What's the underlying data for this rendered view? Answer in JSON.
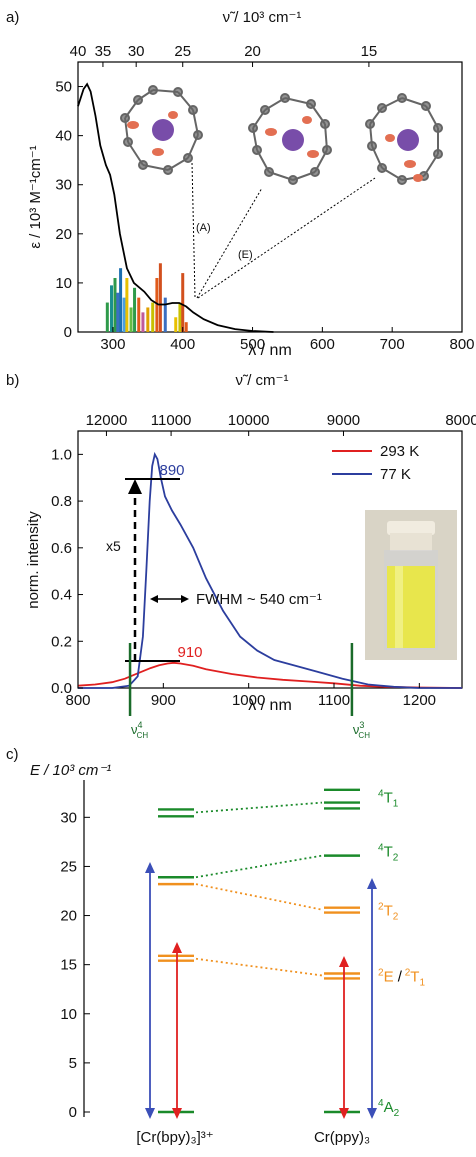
{
  "panels": [
    {
      "letter": "a)",
      "chart_data": {
        "type": "line",
        "title": "",
        "xlabel": "λ / nm",
        "ylabel": "ε / 10³ M⁻¹cm⁻¹",
        "top_xlabel": "ν̃ / 10³ cm⁻¹",
        "xlim": [
          250,
          800
        ],
        "ylim": [
          0,
          55
        ],
        "xticks": [
          300,
          400,
          500,
          600,
          700,
          800
        ],
        "yticks": [
          0,
          10,
          20,
          30,
          40,
          50
        ],
        "top_ticks": [
          40,
          35,
          30,
          25,
          20,
          15
        ],
        "series": [
          {
            "color": "#000000",
            "x": [
              250,
              258,
              263,
              268,
              275,
              282,
              290,
              296,
              302,
              310,
              320,
              330,
              345,
              355,
              365,
              375,
              385,
              395,
              405,
              415,
              430,
              450,
              475,
              500,
              530
            ],
            "y": [
              46,
              49.5,
              50.5,
              49,
              44,
              38,
              34,
              32,
              28,
              20,
              13,
              10,
              8.2,
              6.5,
              5.6,
              5.6,
              5.9,
              5.9,
              5.2,
              4.0,
              2.6,
              1.4,
              0.6,
              0.2,
              0
            ]
          }
        ],
        "transitions": [
          {
            "x": 292,
            "y": 6,
            "color": "#2e9a4a"
          },
          {
            "x": 298,
            "y": 9.5,
            "color": "#1a8f8f"
          },
          {
            "x": 303,
            "y": 11,
            "color": "#2e9a4a"
          },
          {
            "x": 307,
            "y": 8,
            "color": "#3b6fc2"
          },
          {
            "x": 311,
            "y": 13,
            "color": "#1a6fb0"
          },
          {
            "x": 316,
            "y": 7,
            "color": "#4aa0e0"
          },
          {
            "x": 320,
            "y": 11,
            "color": "#e8c000"
          },
          {
            "x": 326,
            "y": 5,
            "color": "#66bb44"
          },
          {
            "x": 331,
            "y": 9,
            "color": "#2e9a4a"
          },
          {
            "x": 337,
            "y": 7,
            "color": "#e05a1a"
          },
          {
            "x": 343,
            "y": 4,
            "color": "#c05a9a"
          },
          {
            "x": 350,
            "y": 5,
            "color": "#e0a000"
          },
          {
            "x": 357,
            "y": 6,
            "color": "#c8c000"
          },
          {
            "x": 363,
            "y": 11,
            "color": "#e05a1a"
          },
          {
            "x": 368,
            "y": 14,
            "color": "#d2501e"
          },
          {
            "x": 375,
            "y": 7,
            "color": "#3b6fc2"
          },
          {
            "x": 390,
            "y": 3,
            "color": "#e8c000"
          },
          {
            "x": 396,
            "y": 6,
            "color": "#c8c000"
          },
          {
            "x": 400,
            "y": 12,
            "color": "#d2501e"
          },
          {
            "x": 405,
            "y": 2,
            "color": "#e05a1a"
          }
        ],
        "annotations": [
          "(A)",
          "(E)"
        ]
      }
    },
    {
      "letter": "b)",
      "chart_data": {
        "type": "line",
        "title": "",
        "xlabel": "λ / nm",
        "ylabel": "norm. intensity",
        "top_xlabel": "ν̃ / cm⁻¹",
        "xlim": [
          800,
          1250
        ],
        "ylim": [
          0,
          1.1
        ],
        "xticks": [
          800,
          900,
          1000,
          1100,
          1200
        ],
        "yticks": [
          "0.0",
          "0.2",
          "0.4",
          "0.6",
          "0.8",
          "1.0"
        ],
        "top_ticks": [
          12000,
          11000,
          10000,
          9000,
          8000
        ],
        "series": [
          {
            "name": "293 K",
            "color": "#e02020",
            "x": [
              800,
              820,
              840,
              855,
              865,
              875,
              885,
              895,
              905,
              912,
              920,
              935,
              950,
              980,
              1010,
              1040,
              1070,
              1100,
              1130,
              1160,
              1200,
              1250
            ],
            "y": [
              0.01,
              0.015,
              0.025,
              0.04,
              0.055,
              0.07,
              0.085,
              0.097,
              0.105,
              0.108,
              0.105,
              0.095,
              0.08,
              0.06,
              0.045,
              0.035,
              0.028,
              0.02,
              0.01,
              0.005,
              0.002,
              0
            ]
          },
          {
            "name": "77 K",
            "color": "#2c3e9e",
            "x": [
              800,
              840,
              860,
              870,
              876,
              880,
              884,
              887,
              890,
              893,
              897,
              902,
              910,
              920,
              935,
              950,
              970,
              990,
              1010,
              1030,
              1050,
              1080,
              1110,
              1140,
              1170,
              1200,
              1250
            ],
            "y": [
              0,
              0,
              0.01,
              0.05,
              0.22,
              0.5,
              0.8,
              0.95,
              1.0,
              0.98,
              0.9,
              0.82,
              0.76,
              0.7,
              0.6,
              0.47,
              0.33,
              0.22,
              0.16,
              0.12,
              0.1,
              0.07,
              0.04,
              0.015,
              0.005,
              0,
              0
            ]
          }
        ],
        "peak_labels": [
          {
            "text": "890",
            "x": 890,
            "y": 1.0,
            "color": "#2c3e9e"
          },
          {
            "text": "910",
            "x": 910,
            "y": 0.11,
            "color": "#e02020"
          }
        ],
        "scale_label": "x5",
        "fwhm_label": "FWHM ~ 540 cm⁻¹",
        "vibronic_marks": [
          {
            "x": 861,
            "main": "ν",
            "sup": "4",
            "sub": "CH",
            "color": "#1a6b2a"
          },
          {
            "x": 1121,
            "main": "ν",
            "sup": "3",
            "sub": "CH",
            "color": "#1a6b2a"
          }
        ]
      }
    },
    {
      "letter": "c)",
      "chart_data": {
        "type": "diagram",
        "title": "",
        "ylabel": "E / 10³ cm⁻¹",
        "ylim": [
          0,
          33
        ],
        "yticks": [
          0,
          5,
          10,
          15,
          20,
          25,
          30
        ],
        "columns": [
          "[Cr(bpy)₃]³⁺",
          "Cr(ppy)₃"
        ],
        "levels": {
          "bpy": [
            {
              "y": 0,
              "color": "#1a8a2a"
            },
            {
              "y": 15.4,
              "color": "#f0901e"
            },
            {
              "y": 15.9,
              "color": "#f0901e"
            },
            {
              "y": 23.2,
              "color": "#f0901e"
            },
            {
              "y": 23.9,
              "color": "#1a8a2a"
            },
            {
              "y": 30.1,
              "color": "#1a8a2a"
            },
            {
              "y": 30.8,
              "color": "#1a8a2a"
            }
          ],
          "ppy": [
            {
              "y": 0,
              "color": "#1a8a2a"
            },
            {
              "y": 13.6,
              "color": "#f0901e"
            },
            {
              "y": 14.1,
              "color": "#f0901e"
            },
            {
              "y": 20.3,
              "color": "#f0901e"
            },
            {
              "y": 20.8,
              "color": "#f0901e"
            },
            {
              "y": 26.1,
              "color": "#1a8a2a"
            },
            {
              "y": 30.9,
              "color": "#1a8a2a"
            },
            {
              "y": 31.5,
              "color": "#1a8a2a"
            },
            {
              "y": 32.8,
              "color": "#1a8a2a"
            }
          ]
        },
        "state_labels": [
          {
            "y": 32,
            "main": "T",
            "sup": "4",
            "sub": "1",
            "color": "#1a8a2a"
          },
          {
            "y": 26.5,
            "main": "T",
            "sup": "4",
            "sub": "2",
            "color": "#1a8a2a"
          },
          {
            "y": 20.5,
            "main": "T",
            "sup": "2",
            "sub": "2",
            "color": "#f0901e"
          },
          {
            "y": 13.8,
            "main": "E / T",
            "sup": "2",
            "sub": "1",
            "color": "#f0901e"
          },
          {
            "y": 0.5,
            "main": "A",
            "sup": "4",
            "sub": "2",
            "color": "#1a8a2a"
          }
        ]
      }
    }
  ]
}
